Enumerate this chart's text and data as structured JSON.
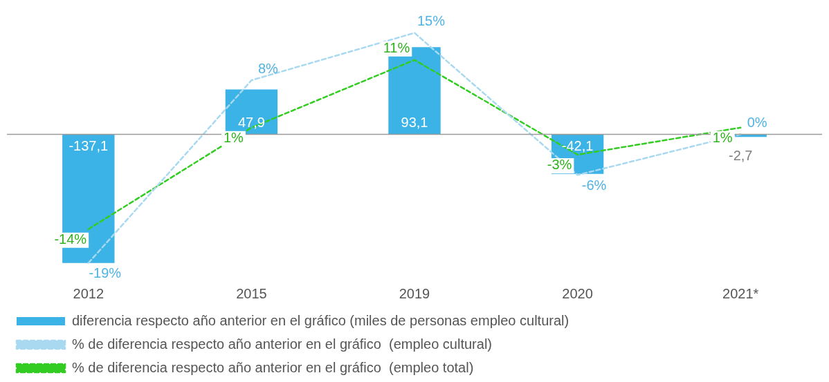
{
  "chart_data": {
    "type": "bar",
    "categories": [
      "2012",
      "2015",
      "2019",
      "2020",
      "2021*"
    ],
    "series": [
      {
        "name": "diferencia respecto año anterior en el gráfico (miles de personas empleo cultural)",
        "color": "#3bb3e6",
        "values": [
          -137.1,
          47.9,
          93.1,
          -42.1,
          -2.7
        ],
        "value_labels": [
          "-137,1",
          "47,9",
          "93,1",
          "-42,1",
          "-2,7"
        ]
      },
      {
        "type": "line",
        "axis": "y2",
        "line_style": "dashed",
        "name": "% de diferencia respecto año anterior en el gráfico  (empleo cultural)",
        "color": "#a9d9f0",
        "values": [
          -19,
          8,
          15,
          -6,
          0
        ],
        "value_labels": [
          "-19%",
          "8%",
          "15%",
          "-6%",
          "0%"
        ]
      },
      {
        "type": "line",
        "axis": "y2",
        "line_style": "dashed",
        "name": "% de diferencia respecto año anterior en el gráfico  (empleo total)",
        "color": "#33cc22",
        "values": [
          -14,
          1,
          11,
          -3,
          1
        ],
        "value_labels": [
          "-14%",
          "1%",
          "11%",
          "-3%",
          "1%"
        ]
      }
    ],
    "legend": "bottom"
  }
}
